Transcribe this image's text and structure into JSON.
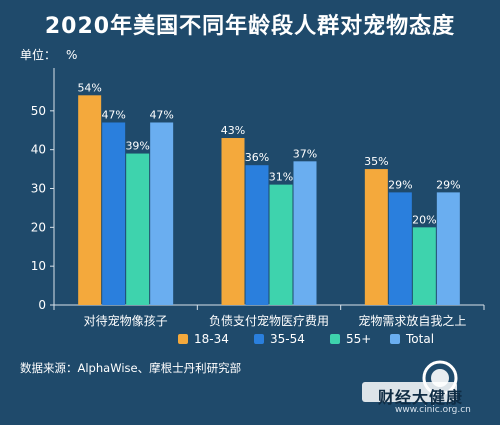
{
  "title": "2020年美国不同年龄段人群对宠物态度",
  "unit_label": "单位：",
  "unit_value": "%",
  "source": "数据来源：AlphaWise、摩根士丹利研究部",
  "watermark": {
    "text": "财经大健康",
    "url": "www.cinic.org.cn"
  },
  "chart_data": {
    "type": "bar",
    "categories": [
      "对待宠物像孩子",
      "负债支付宠物医疗费用",
      "宠物需求放自我之上"
    ],
    "series": [
      {
        "name": "18-34",
        "values": [
          54,
          43,
          35
        ],
        "color": "#f4a93c"
      },
      {
        "name": "35-54",
        "values": [
          47,
          36,
          29
        ],
        "color": "#2a7fdd"
      },
      {
        "name": "55+",
        "values": [
          39,
          31,
          20
        ],
        "color": "#3ed3ad"
      },
      {
        "name": "Total",
        "values": [
          47,
          37,
          29
        ],
        "color": "#6aaef0"
      }
    ],
    "yticks": [
      0,
      10,
      20,
      30,
      40,
      50
    ],
    "ylim": [
      0,
      60
    ],
    "legend_position": "bottom",
    "label_suffix": "%"
  }
}
